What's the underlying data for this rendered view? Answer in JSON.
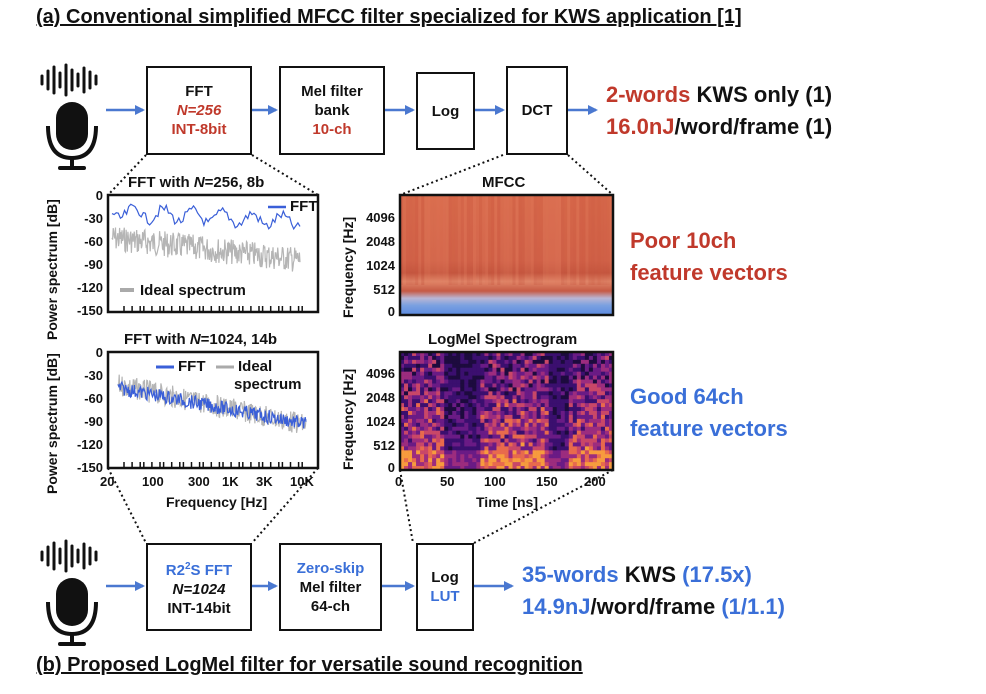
{
  "title_a": "(a) Conventional simplified MFCC filter specialized for KWS application [1]",
  "title_b": "(b) Proposed LogMel filter for versatile sound recognition",
  "top_chain": {
    "fft": {
      "line1": "FFT",
      "line2": "N=256",
      "line3": "INT-8bit"
    },
    "mel": {
      "line1": "Mel filter",
      "line2": "bank",
      "line3": "10-ch"
    },
    "log": {
      "line1": "Log"
    },
    "dct": {
      "line1": "DCT"
    },
    "result1": {
      "hl": "2-words",
      "rest": " KWS only (1)"
    },
    "result2": {
      "hl": "16.0nJ",
      "rest": "/word/frame (1)"
    }
  },
  "bottom_chain": {
    "fft": {
      "line1_a": "R2",
      "line1_sup": "2",
      "line1_b": "S FFT",
      "line2": "N=1024",
      "line3": "INT-14bit"
    },
    "mel": {
      "line1": "Zero-skip",
      "line2": "Mel filter",
      "line3": "64-ch"
    },
    "log": {
      "line1": "Log",
      "line2": "LUT"
    },
    "result1": {
      "hl": "35-words",
      "mid": " KWS ",
      "tail": "(17.5x)"
    },
    "result2": {
      "hl": "14.9nJ",
      "mid": "/word/frame ",
      "tail": "(1/1.1)"
    }
  },
  "plots": {
    "fft256": {
      "title_a": "FFT with ",
      "title_n": "N",
      "title_b": "=256, 8b",
      "legend_fft": "FFT",
      "legend_ideal": "Ideal spectrum",
      "ylabel": "Power spectrum [dB]"
    },
    "fft1024": {
      "title_a": "FFT with ",
      "title_n": "N",
      "title_b": "=1024, 14b",
      "legend_fft": "FFT",
      "legend_ideal": "Ideal",
      "legend_ideal2": "spectrum",
      "ylabel": "Power spectrum [dB]",
      "xlabel": "Frequency [Hz]"
    },
    "y_ticks": [
      "0",
      "-30",
      "-60",
      "-90",
      "-120",
      "-150"
    ],
    "x_ticks": [
      "20",
      "100",
      "300",
      "1K",
      "3K",
      "10K"
    ],
    "mfcc": {
      "title": "MFCC",
      "ylabel": "Frequency [Hz]"
    },
    "logmel": {
      "title": "LogMel Spectrogram",
      "ylabel": "Frequency [Hz]",
      "xlabel": "Time [ns]"
    },
    "freq_ticks": [
      "4096",
      "2048",
      "1024",
      "512",
      "0"
    ],
    "time_ticks": [
      "0",
      "50",
      "100",
      "150",
      "200"
    ]
  },
  "side": {
    "poor1": "Poor 10ch",
    "poor2": "feature vectors",
    "good1": "Good 64ch",
    "good2": "feature vectors"
  },
  "colors": {
    "red": "#c0392b",
    "blue": "#3a6fd8",
    "arrow": "#4a78d0"
  },
  "icons": [
    "microphone-icon",
    "soundwave-icon"
  ]
}
